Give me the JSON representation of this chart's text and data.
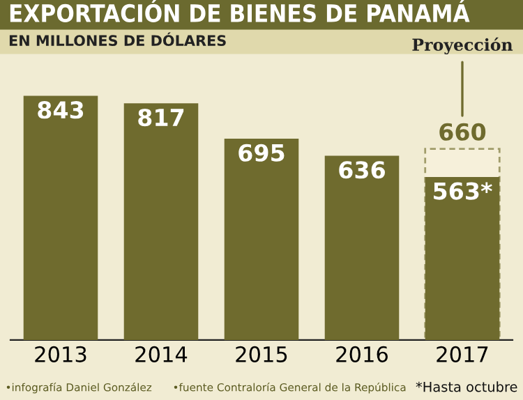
{
  "chart_data": {
    "type": "bar",
    "title": "EXPORTACIÓN DE BIENES DE PANAMÁ",
    "subtitle": "EN MILLONES DE DÓLARES",
    "categories": [
      "2013",
      "2014",
      "2015",
      "2016",
      "2017"
    ],
    "series": [
      {
        "name": "Proyección",
        "color": "#f6f0da",
        "line_style": "dashed",
        "values": [
          null,
          null,
          null,
          null,
          660
        ],
        "value_labels": [
          null,
          null,
          null,
          null,
          "660"
        ]
      },
      {
        "color": "#6f6b2e",
        "values": [
          843,
          817,
          695,
          636,
          563
        ],
        "value_labels": [
          "843",
          "817",
          "695",
          "636",
          "563*"
        ]
      }
    ],
    "annotations": [
      "•infografía Daniel González",
      "•fuente Contraloría General de la República",
      "*Hasta octubre"
    ],
    "legend": false,
    "grid": false
  }
}
